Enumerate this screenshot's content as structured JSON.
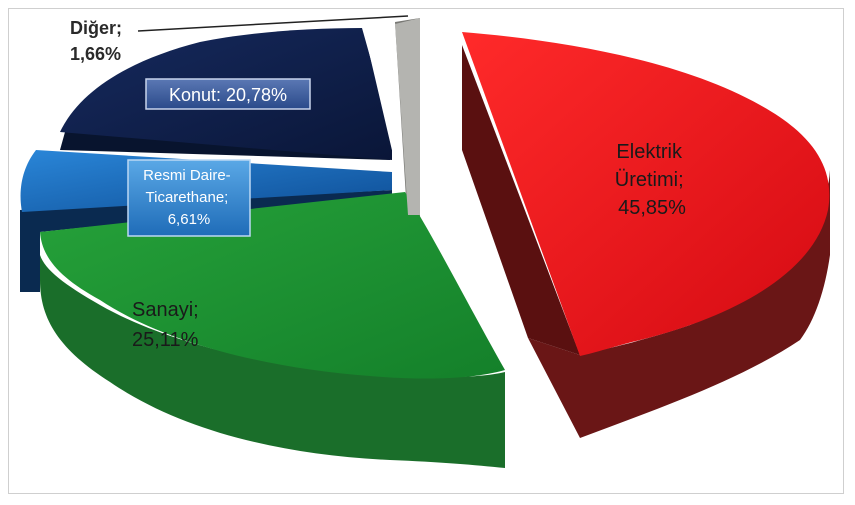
{
  "chart_data": {
    "type": "pie",
    "style": "3d-exploded",
    "legend": "none",
    "slices": [
      {
        "name": "Elektrik Üretimi",
        "value": 45.85,
        "label_lines": [
          "Elektrik",
          "Üretimi;",
          "45,85%"
        ],
        "color": "#e0121c",
        "side_color": "#6a1616"
      },
      {
        "name": "Sanayi",
        "value": 25.11,
        "label_lines": [
          "Sanayi;",
          "25,11%"
        ],
        "color": "#1e8a30",
        "side_color": "#1a6e2a"
      },
      {
        "name": "Resmi Daire-Ticarethane",
        "value": 6.61,
        "label_lines": [
          "Resmi Daire-",
          "Ticarethane;",
          "6,61%"
        ],
        "color": "#1664b4",
        "side_color": "#0a2a50"
      },
      {
        "name": "Konut",
        "value": 20.78,
        "label_lines": [
          "Konut: 20,78%"
        ],
        "color": "#0f1f4e",
        "side_color": "#08142e"
      },
      {
        "name": "Diğer",
        "value": 1.66,
        "label_lines": [
          "Diğer;",
          "1,66%"
        ],
        "color": "#b4b4b0",
        "side_color": "#787874"
      }
    ]
  }
}
